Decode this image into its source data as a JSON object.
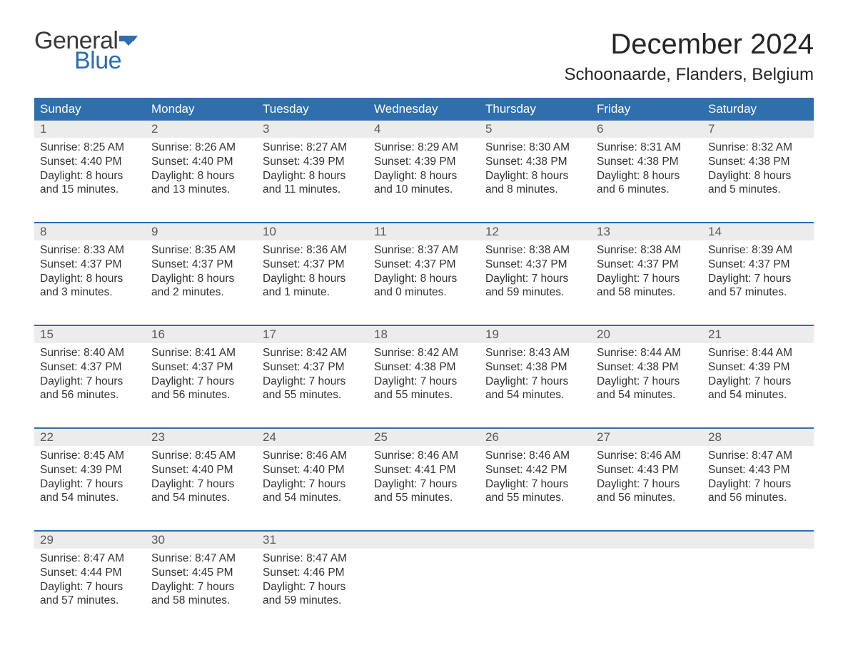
{
  "logo": {
    "text1": "General",
    "text2": "Blue",
    "flag_color": "#2f6fae"
  },
  "title": "December 2024",
  "location": "Schoonaarde, Flanders, Belgium",
  "colors": {
    "header_bg": "#2f6fae",
    "header_text": "#ffffff",
    "daynum_bg": "#ececec",
    "daynum_text": "#5a5a5a",
    "body_text": "#333333",
    "week_border": "#2f6fae"
  },
  "day_headers": [
    "Sunday",
    "Monday",
    "Tuesday",
    "Wednesday",
    "Thursday",
    "Friday",
    "Saturday"
  ],
  "weeks": [
    [
      {
        "n": "1",
        "sunrise": "Sunrise: 8:25 AM",
        "sunset": "Sunset: 4:40 PM",
        "dl1": "Daylight: 8 hours",
        "dl2": "and 15 minutes."
      },
      {
        "n": "2",
        "sunrise": "Sunrise: 8:26 AM",
        "sunset": "Sunset: 4:40 PM",
        "dl1": "Daylight: 8 hours",
        "dl2": "and 13 minutes."
      },
      {
        "n": "3",
        "sunrise": "Sunrise: 8:27 AM",
        "sunset": "Sunset: 4:39 PM",
        "dl1": "Daylight: 8 hours",
        "dl2": "and 11 minutes."
      },
      {
        "n": "4",
        "sunrise": "Sunrise: 8:29 AM",
        "sunset": "Sunset: 4:39 PM",
        "dl1": "Daylight: 8 hours",
        "dl2": "and 10 minutes."
      },
      {
        "n": "5",
        "sunrise": "Sunrise: 8:30 AM",
        "sunset": "Sunset: 4:38 PM",
        "dl1": "Daylight: 8 hours",
        "dl2": "and 8 minutes."
      },
      {
        "n": "6",
        "sunrise": "Sunrise: 8:31 AM",
        "sunset": "Sunset: 4:38 PM",
        "dl1": "Daylight: 8 hours",
        "dl2": "and 6 minutes."
      },
      {
        "n": "7",
        "sunrise": "Sunrise: 8:32 AM",
        "sunset": "Sunset: 4:38 PM",
        "dl1": "Daylight: 8 hours",
        "dl2": "and 5 minutes."
      }
    ],
    [
      {
        "n": "8",
        "sunrise": "Sunrise: 8:33 AM",
        "sunset": "Sunset: 4:37 PM",
        "dl1": "Daylight: 8 hours",
        "dl2": "and 3 minutes."
      },
      {
        "n": "9",
        "sunrise": "Sunrise: 8:35 AM",
        "sunset": "Sunset: 4:37 PM",
        "dl1": "Daylight: 8 hours",
        "dl2": "and 2 minutes."
      },
      {
        "n": "10",
        "sunrise": "Sunrise: 8:36 AM",
        "sunset": "Sunset: 4:37 PM",
        "dl1": "Daylight: 8 hours",
        "dl2": "and 1 minute."
      },
      {
        "n": "11",
        "sunrise": "Sunrise: 8:37 AM",
        "sunset": "Sunset: 4:37 PM",
        "dl1": "Daylight: 8 hours",
        "dl2": "and 0 minutes."
      },
      {
        "n": "12",
        "sunrise": "Sunrise: 8:38 AM",
        "sunset": "Sunset: 4:37 PM",
        "dl1": "Daylight: 7 hours",
        "dl2": "and 59 minutes."
      },
      {
        "n": "13",
        "sunrise": "Sunrise: 8:38 AM",
        "sunset": "Sunset: 4:37 PM",
        "dl1": "Daylight: 7 hours",
        "dl2": "and 58 minutes."
      },
      {
        "n": "14",
        "sunrise": "Sunrise: 8:39 AM",
        "sunset": "Sunset: 4:37 PM",
        "dl1": "Daylight: 7 hours",
        "dl2": "and 57 minutes."
      }
    ],
    [
      {
        "n": "15",
        "sunrise": "Sunrise: 8:40 AM",
        "sunset": "Sunset: 4:37 PM",
        "dl1": "Daylight: 7 hours",
        "dl2": "and 56 minutes."
      },
      {
        "n": "16",
        "sunrise": "Sunrise: 8:41 AM",
        "sunset": "Sunset: 4:37 PM",
        "dl1": "Daylight: 7 hours",
        "dl2": "and 56 minutes."
      },
      {
        "n": "17",
        "sunrise": "Sunrise: 8:42 AM",
        "sunset": "Sunset: 4:37 PM",
        "dl1": "Daylight: 7 hours",
        "dl2": "and 55 minutes."
      },
      {
        "n": "18",
        "sunrise": "Sunrise: 8:42 AM",
        "sunset": "Sunset: 4:38 PM",
        "dl1": "Daylight: 7 hours",
        "dl2": "and 55 minutes."
      },
      {
        "n": "19",
        "sunrise": "Sunrise: 8:43 AM",
        "sunset": "Sunset: 4:38 PM",
        "dl1": "Daylight: 7 hours",
        "dl2": "and 54 minutes."
      },
      {
        "n": "20",
        "sunrise": "Sunrise: 8:44 AM",
        "sunset": "Sunset: 4:38 PM",
        "dl1": "Daylight: 7 hours",
        "dl2": "and 54 minutes."
      },
      {
        "n": "21",
        "sunrise": "Sunrise: 8:44 AM",
        "sunset": "Sunset: 4:39 PM",
        "dl1": "Daylight: 7 hours",
        "dl2": "and 54 minutes."
      }
    ],
    [
      {
        "n": "22",
        "sunrise": "Sunrise: 8:45 AM",
        "sunset": "Sunset: 4:39 PM",
        "dl1": "Daylight: 7 hours",
        "dl2": "and 54 minutes."
      },
      {
        "n": "23",
        "sunrise": "Sunrise: 8:45 AM",
        "sunset": "Sunset: 4:40 PM",
        "dl1": "Daylight: 7 hours",
        "dl2": "and 54 minutes."
      },
      {
        "n": "24",
        "sunrise": "Sunrise: 8:46 AM",
        "sunset": "Sunset: 4:40 PM",
        "dl1": "Daylight: 7 hours",
        "dl2": "and 54 minutes."
      },
      {
        "n": "25",
        "sunrise": "Sunrise: 8:46 AM",
        "sunset": "Sunset: 4:41 PM",
        "dl1": "Daylight: 7 hours",
        "dl2": "and 55 minutes."
      },
      {
        "n": "26",
        "sunrise": "Sunrise: 8:46 AM",
        "sunset": "Sunset: 4:42 PM",
        "dl1": "Daylight: 7 hours",
        "dl2": "and 55 minutes."
      },
      {
        "n": "27",
        "sunrise": "Sunrise: 8:46 AM",
        "sunset": "Sunset: 4:43 PM",
        "dl1": "Daylight: 7 hours",
        "dl2": "and 56 minutes."
      },
      {
        "n": "28",
        "sunrise": "Sunrise: 8:47 AM",
        "sunset": "Sunset: 4:43 PM",
        "dl1": "Daylight: 7 hours",
        "dl2": "and 56 minutes."
      }
    ],
    [
      {
        "n": "29",
        "sunrise": "Sunrise: 8:47 AM",
        "sunset": "Sunset: 4:44 PM",
        "dl1": "Daylight: 7 hours",
        "dl2": "and 57 minutes."
      },
      {
        "n": "30",
        "sunrise": "Sunrise: 8:47 AM",
        "sunset": "Sunset: 4:45 PM",
        "dl1": "Daylight: 7 hours",
        "dl2": "and 58 minutes."
      },
      {
        "n": "31",
        "sunrise": "Sunrise: 8:47 AM",
        "sunset": "Sunset: 4:46 PM",
        "dl1": "Daylight: 7 hours",
        "dl2": "and 59 minutes."
      },
      {
        "n": "",
        "sunrise": "",
        "sunset": "",
        "dl1": "",
        "dl2": ""
      },
      {
        "n": "",
        "sunrise": "",
        "sunset": "",
        "dl1": "",
        "dl2": ""
      },
      {
        "n": "",
        "sunrise": "",
        "sunset": "",
        "dl1": "",
        "dl2": ""
      },
      {
        "n": "",
        "sunrise": "",
        "sunset": "",
        "dl1": "",
        "dl2": ""
      }
    ]
  ]
}
